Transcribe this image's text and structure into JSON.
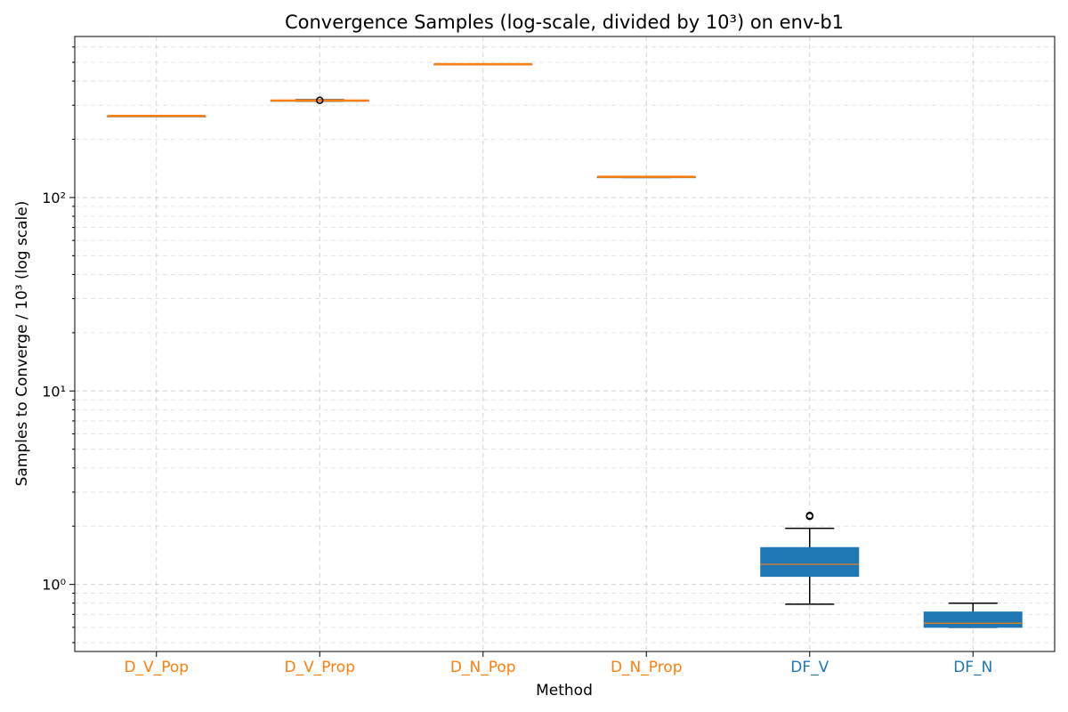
{
  "chart_data": {
    "type": "box",
    "title": "Convergence Samples (log-scale, divided by 10³) on env-b1",
    "xlabel": "Method",
    "ylabel": "Samples to Converge / 10³ (log scale)",
    "yscale": "log",
    "ylim": [
      0.45,
      680
    ],
    "y_major_ticks": [
      1,
      10,
      100
    ],
    "y_major_tick_labels": [
      "10⁰",
      "10¹",
      "10²"
    ],
    "grid": true,
    "categories": [
      "D_V_Pop",
      "D_V_Prop",
      "D_N_Pop",
      "D_N_Prop",
      "DF_V",
      "DF_N"
    ],
    "category_colors": [
      "#ff7f0e",
      "#ff7f0e",
      "#ff7f0e",
      "#ff7f0e",
      "#1f77b4",
      "#1f77b4"
    ],
    "boxes": [
      {
        "name": "D_V_Pop",
        "whisker_low": 264,
        "q1": 264,
        "median": 264,
        "q3": 264,
        "whisker_high": 264,
        "outliers": []
      },
      {
        "name": "D_V_Prop",
        "whisker_low": 315,
        "q1": 316,
        "median": 317,
        "q3": 318,
        "whisker_high": 320,
        "outliers": [
          318
        ]
      },
      {
        "name": "D_N_Pop",
        "whisker_low": 488,
        "q1": 488,
        "median": 489,
        "q3": 490,
        "whisker_high": 490,
        "outliers": []
      },
      {
        "name": "D_N_Prop",
        "whisker_low": 127,
        "q1": 127,
        "median": 128,
        "q3": 128,
        "whisker_high": 128,
        "outliers": []
      },
      {
        "name": "DF_V",
        "whisker_low": 0.79,
        "q1": 1.1,
        "median": 1.27,
        "q3": 1.55,
        "whisker_high": 1.95,
        "outliers": [
          2.25,
          2.27
        ]
      },
      {
        "name": "DF_N",
        "whisker_low": 0.6,
        "q1": 0.6,
        "median": 0.63,
        "q3": 0.72,
        "whisker_high": 0.8,
        "outliers": []
      }
    ],
    "colors": {
      "box_fill": "#1f77b4",
      "median": "#ff7f0e",
      "whisker": "#000000",
      "grid": "#b0b0b0"
    }
  }
}
